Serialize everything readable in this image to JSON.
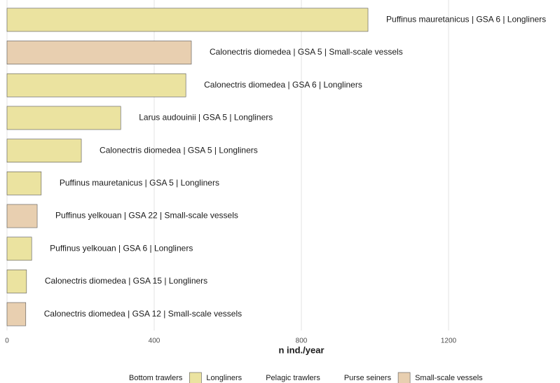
{
  "chart_data": {
    "type": "bar",
    "orientation": "horizontal",
    "categories": [
      "Puffinus mauretanicus | GSA 6 | Longliners",
      "Calonectris diomedea | GSA 5 | Small-scale vessels",
      "Calonectris diomedea | GSA 6 | Longliners",
      "Larus audouinii | GSA 5 | Longliners",
      "Calonectris diomedea | GSA 5 | Longliners",
      "Puffinus mauretanicus | GSA 5 | Longliners",
      "Puffinus yelkouan | GSA 22 | Small-scale vessels",
      "Puffinus yelkouan | GSA 6 | Longliners",
      "Calonectris diomedea | GSA 15 | Longliners",
      "Calonectris diomedea | GSA 12 | Small-scale vessels"
    ],
    "series": [
      {
        "name": "Bottom trawlers",
        "color": "#ffffff",
        "values": [
          null,
          null,
          null,
          null,
          null,
          null,
          null,
          null,
          null,
          null
        ]
      },
      {
        "name": "Longliners",
        "color": "#ebe3a0",
        "values": [
          981,
          null,
          486,
          309,
          202,
          93,
          null,
          67,
          53,
          null
        ]
      },
      {
        "name": "Pelagic trawlers",
        "color": "#ffffff",
        "values": [
          null,
          null,
          null,
          null,
          null,
          null,
          null,
          null,
          null,
          null
        ]
      },
      {
        "name": "Purse seiners",
        "color": "#ffffff",
        "values": [
          null,
          null,
          null,
          null,
          null,
          null,
          null,
          null,
          null,
          null
        ]
      },
      {
        "name": "Small-scale vessels",
        "color": "#e8cfb0",
        "values": [
          null,
          501,
          null,
          null,
          null,
          null,
          82,
          null,
          null,
          51
        ]
      }
    ],
    "x_label": "n ind./year",
    "xlim": [
      0,
      1500
    ],
    "xticks": [
      0,
      400,
      800,
      1200
    ],
    "grid": true,
    "legend": "bottom"
  }
}
